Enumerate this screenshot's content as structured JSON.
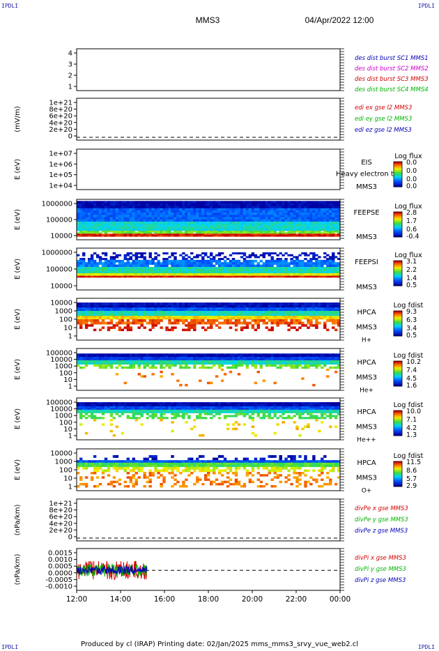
{
  "header": {
    "mission": "MMS3",
    "datetime": "04/Apr/2022 12:00",
    "corner_tl": "IPDLI",
    "corner_tr": "IPDLI",
    "corner_bl": "IPDLI",
    "corner_br": "IPDLI"
  },
  "footer": {
    "text": "Produced by cl (IRAP)   Printing date: 02/Jan/2025   mms_mms3_srvy_vue_web2.cl"
  },
  "colors": {
    "red": "#d40000",
    "green": "#00b400",
    "blue": "#0000b4",
    "magenta": "#cc00cc",
    "line_fill": "#000000"
  },
  "chart_data": {
    "type": "heatmap",
    "x_axis": {
      "ticks": [
        "12:00",
        "14:00",
        "16:00",
        "18:00",
        "20:00",
        "22:00",
        "00:00"
      ],
      "range_hours": [
        12,
        24
      ]
    },
    "panels": [
      {
        "id": "des-dist-burst",
        "kind": "empty",
        "ylabel": "",
        "yticks": [
          "4",
          "3",
          "2",
          "1"
        ],
        "labels": [
          {
            "text": "des dist burst SC1 MMS1",
            "color": "#0000b4"
          },
          {
            "text": "des dist burst SC2 MMS2",
            "color": "#cc00cc"
          },
          {
            "text": "des dist burst SC3 MMS3",
            "color": "#d40000"
          },
          {
            "text": "des dist burst SC4 MMS4",
            "color": "#00b400"
          }
        ]
      },
      {
        "id": "edi-e-field",
        "kind": "line",
        "ylabel": "(mV/m)",
        "yticks": [
          "1e+21",
          "8e+20",
          "6e+20",
          "4e+20",
          "2e+20",
          "0"
        ],
        "zero_line": true,
        "labels": [
          {
            "text": "edi ex gse l2 MMS3",
            "color": "#d40000"
          },
          {
            "text": "edi ey gse l2 MMS3",
            "color": "#00b400"
          },
          {
            "text": "edi ez gse l2 MMS3",
            "color": "#0000b4"
          }
        ]
      },
      {
        "id": "eis",
        "kind": "spectrogram",
        "ylabel": "E (eV)",
        "yticks": [
          "1e+07",
          "1e+06",
          "1e+05",
          "1e+04"
        ],
        "inst": [
          "EIS",
          "MMS3"
        ],
        "overlay": "Heavy electron to",
        "cbar_title": "Log flux",
        "cbar": [
          "0.0",
          "0.0",
          "0.0",
          "0.0"
        ],
        "has_data": false
      },
      {
        "id": "feepse",
        "kind": "spectrogram",
        "ylabel": "E (eV)",
        "yticks": [
          "1000000",
          "100000",
          "10000"
        ],
        "inst": [
          "FEEPSE",
          "MMS3"
        ],
        "cbar_title": "Log flux",
        "cbar": [
          "2.8",
          "1.7",
          "0.6",
          "-0.4"
        ],
        "has_data": true
      },
      {
        "id": "feepsi",
        "kind": "spectrogram",
        "ylabel": "E (eV)",
        "yticks": [
          "1000000",
          "100000",
          "10000"
        ],
        "inst": [
          "FEEPSI",
          "MMS3"
        ],
        "cbar_title": "Log flux",
        "cbar": [
          "3.1",
          "2.2",
          "1.4",
          "0.5"
        ],
        "has_data": true
      },
      {
        "id": "hpca-h",
        "kind": "spectrogram",
        "ylabel": "E (eV)",
        "yticks": [
          "10000",
          "1000",
          "100",
          "10",
          "1"
        ],
        "inst": [
          "HPCA",
          "MMS3",
          "H+"
        ],
        "cbar_title": "Log fdist",
        "cbar": [
          "9.3",
          "6.3",
          "3.4",
          "0.5"
        ],
        "has_data": true
      },
      {
        "id": "hpca-he",
        "kind": "spectrogram",
        "ylabel": "E (eV)",
        "yticks": [
          "100000",
          "10000",
          "1000",
          "100",
          "10",
          "1"
        ],
        "inst": [
          "HPCA",
          "MMS3",
          "He+"
        ],
        "cbar_title": "Log fdist",
        "cbar": [
          "10.2",
          "7.4",
          "4.5",
          "1.6"
        ],
        "has_data": true
      },
      {
        "id": "hpca-he2",
        "kind": "spectrogram",
        "ylabel": "E (eV)",
        "yticks": [
          "100000",
          "10000",
          "1000",
          "100",
          "10",
          "1"
        ],
        "inst": [
          "HPCA",
          "MMS3",
          "He++"
        ],
        "cbar_title": "Log fdist",
        "cbar": [
          "10.0",
          "7.1",
          "4.2",
          "1.3"
        ],
        "has_data": true
      },
      {
        "id": "hpca-o",
        "kind": "spectrogram",
        "ylabel": "E (eV)",
        "yticks": [
          "10000",
          "1000",
          "100",
          "10",
          "1"
        ],
        "inst": [
          "HPCA",
          "MMS3",
          "O+"
        ],
        "cbar_title": "Log fdist",
        "cbar": [
          "11.5",
          "8.6",
          "5.7",
          "2.9"
        ],
        "has_data": true
      },
      {
        "id": "divpe",
        "kind": "line",
        "ylabel": "(nPa/km)",
        "yticks": [
          "1e+21",
          "8e+20",
          "6e+20",
          "4e+20",
          "2e+20",
          "0"
        ],
        "zero_line": true,
        "labels": [
          {
            "text": "divPe x gse MMS3",
            "color": "#d40000"
          },
          {
            "text": "divPe y gse MMS3",
            "color": "#00b400"
          },
          {
            "text": "divPe z gse MMS3",
            "color": "#0000b4"
          }
        ]
      },
      {
        "id": "divpi",
        "kind": "line",
        "ylabel": "(nPa/km)",
        "yticks": [
          "0.0015",
          "0.0010",
          "0.0005",
          "0.0000",
          "-0.0005",
          "-0.0010"
        ],
        "zero_line": true,
        "data_end_hour": 15.2,
        "labels": [
          {
            "text": "divPi x gse MMS3",
            "color": "#d40000"
          },
          {
            "text": "divPi y gse MMS3",
            "color": "#00b400"
          },
          {
            "text": "divPi z gse MMS3",
            "color": "#0000b4"
          }
        ]
      }
    ]
  }
}
